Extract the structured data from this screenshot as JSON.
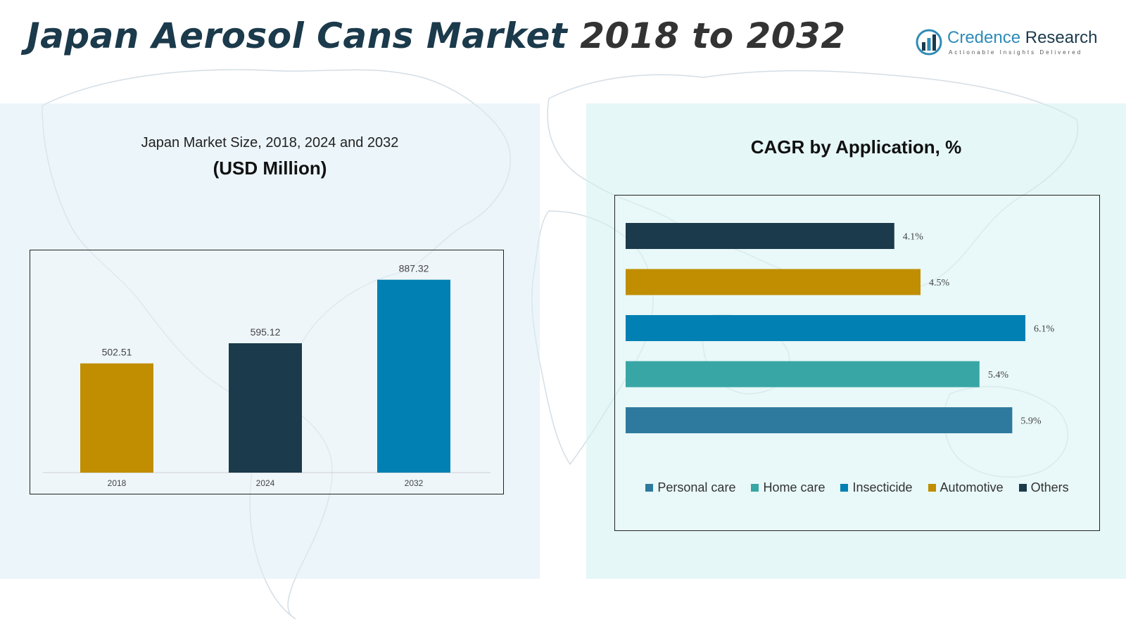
{
  "header": {
    "title_main": "Japan Aerosol Cans Market",
    "title_years": "2018 to 2032"
  },
  "logo": {
    "name_part1": "Credence",
    "name_part2": "Research",
    "tagline": "Actionable Insights Delivered",
    "icon": "bar-chart-circle-icon"
  },
  "left_panel": {
    "subtitle": "Japan Market Size, 2018, 2024 and 2032",
    "unit": "(USD Million)"
  },
  "right_panel": {
    "title": "CAGR by Application, %"
  },
  "chart_data": [
    {
      "type": "bar",
      "title": "Japan Market Size, 2018, 2024 and 2032",
      "ylabel": "",
      "xlabel": "",
      "categories": [
        "2018",
        "2024",
        "2032"
      ],
      "values": [
        502.51,
        595.12,
        887.32
      ],
      "value_labels": [
        "502.51",
        "595.12",
        "887.32"
      ],
      "colors": [
        "#c08e00",
        "#1b3a4b",
        "#0080b3"
      ],
      "ylim": [
        0,
        1000
      ],
      "grid": false
    },
    {
      "type": "bar",
      "orientation": "horizontal",
      "title": "CAGR by Application, %",
      "categories": [
        "Others",
        "Automotive",
        "Insecticide",
        "Home care",
        "Personal care"
      ],
      "values": [
        4.1,
        4.5,
        6.1,
        5.4,
        5.9
      ],
      "value_labels": [
        "4.1%",
        "4.5%",
        "6.1%",
        "5.4%",
        "5.9%"
      ],
      "colors": [
        "#1b3a4b",
        "#c08e00",
        "#0080b3",
        "#38a6a5",
        "#2e7a9e"
      ],
      "xlim": [
        0,
        7
      ],
      "grid": false,
      "legend": {
        "position": "bottom",
        "items": [
          {
            "label": "Personal care",
            "color": "#2e7a9e"
          },
          {
            "label": "Home care",
            "color": "#38a6a5"
          },
          {
            "label": "Insecticide",
            "color": "#0080b3"
          },
          {
            "label": "Automotive",
            "color": "#c08e00"
          },
          {
            "label": "Others",
            "color": "#1b3a4b"
          }
        ]
      }
    }
  ]
}
